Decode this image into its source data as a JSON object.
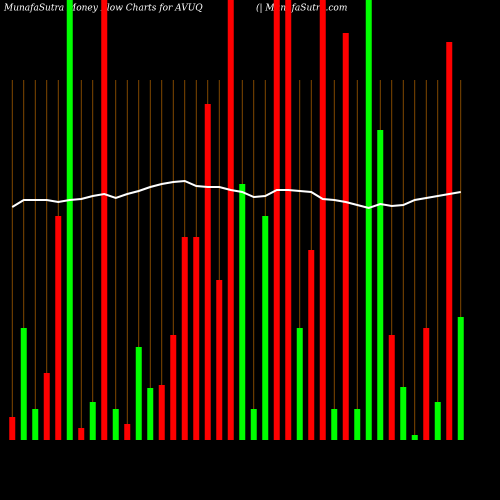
{
  "chart_data": {
    "type": "bar",
    "title": "MunafaSutra  Money Flow  Charts for AVUQ",
    "subtitle": "(| MunafaSutra.com",
    "ylim": [
      0,
      440
    ],
    "series": [
      {
        "name": null,
        "values": [
          23,
          112,
          31,
          67,
          224,
          440,
          12,
          38,
          440,
          31,
          16,
          93,
          52,
          55,
          105,
          203,
          203,
          336,
          160,
          440,
          256,
          31,
          224,
          440,
          440,
          112,
          190,
          440,
          31,
          407,
          31,
          440,
          310,
          105,
          53,
          5,
          112,
          38,
          398,
          123
        ],
        "colors": [
          "#ff0000",
          "#00ff00",
          "#00ff00",
          "#ff0000",
          "#ff0000",
          "#00ff00",
          "#ff0000",
          "#00ff00",
          "#ff0000",
          "#00ff00",
          "#ff0000",
          "#00ff00",
          "#00ff00",
          "#ff0000",
          "#ff0000",
          "#ff0000",
          "#ff0000",
          "#ff0000",
          "#ff0000",
          "#ff0000",
          "#00ff00",
          "#00ff00",
          "#00ff00",
          "#ff0000",
          "#ff0000",
          "#00ff00",
          "#ff0000",
          "#ff0000",
          "#00ff00",
          "#ff0000",
          "#00ff00",
          "#00ff00",
          "#00ff00",
          "#ff0000",
          "#00ff00",
          "#00ff00",
          "#ff0000",
          "#00ff00",
          "#ff0000",
          "#00ff00"
        ]
      },
      {
        "name": null,
        "type": "line",
        "color": "#ffffff",
        "values": [
          233,
          240,
          240,
          240,
          238,
          240,
          241,
          244,
          246,
          242,
          246,
          249,
          253,
          256,
          258,
          259,
          254,
          253,
          253,
          250,
          248,
          243,
          244,
          250,
          250,
          249,
          248,
          241,
          240,
          238,
          235,
          232,
          236,
          234,
          235,
          240,
          242,
          244,
          246,
          248
        ]
      }
    ]
  }
}
